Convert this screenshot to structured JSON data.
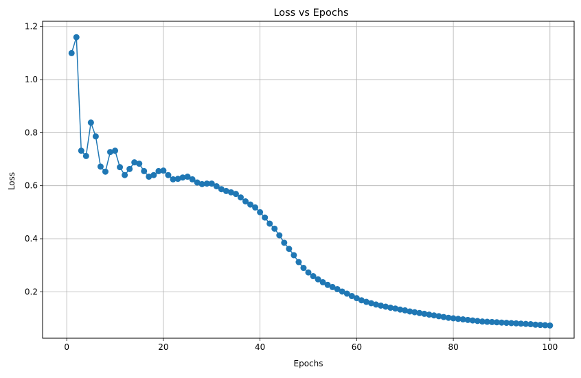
{
  "chart_data": {
    "type": "line",
    "title": "Loss vs Epochs",
    "xlabel": "Epochs",
    "ylabel": "Loss",
    "xlim": [
      -5,
      105
    ],
    "ylim": [
      0.025,
      1.22
    ],
    "grid": true,
    "x_ticks": [
      0,
      20,
      40,
      60,
      80,
      100
    ],
    "x_tick_labels": [
      "0",
      "20",
      "40",
      "60",
      "80",
      "100"
    ],
    "y_ticks": [
      0.2,
      0.4,
      0.6,
      0.8,
      1.0,
      1.2
    ],
    "y_tick_labels": [
      "0.2",
      "0.4",
      "0.6",
      "0.8",
      "1.0",
      "1.2"
    ],
    "line_color": "#1f77b4",
    "grid_color": "#b0b0b0",
    "marker": "circle",
    "series": [
      {
        "x": [
          1,
          2,
          3,
          4,
          5,
          6,
          7,
          8,
          9,
          10,
          11,
          12,
          13,
          14,
          15,
          16,
          17,
          18,
          19,
          20,
          21,
          22,
          23,
          24,
          25,
          26,
          27,
          28,
          29,
          30,
          31,
          32,
          33,
          34,
          35,
          36,
          37,
          38,
          39,
          40,
          41,
          42,
          43,
          44,
          45,
          46,
          47,
          48,
          49,
          50,
          51,
          52,
          53,
          54,
          55,
          56,
          57,
          58,
          59,
          60,
          61,
          62,
          63,
          64,
          65,
          66,
          67,
          68,
          69,
          70,
          71,
          72,
          73,
          74,
          75,
          76,
          77,
          78,
          79,
          80,
          81,
          82,
          83,
          84,
          85,
          86,
          87,
          88,
          89,
          90,
          91,
          92,
          93,
          94,
          95,
          96,
          97,
          98,
          99,
          100
        ],
        "values": [
          1.1,
          1.16,
          0.732,
          0.712,
          0.838,
          0.786,
          0.672,
          0.653,
          0.727,
          0.732,
          0.67,
          0.64,
          0.663,
          0.688,
          0.683,
          0.655,
          0.634,
          0.64,
          0.655,
          0.657,
          0.64,
          0.624,
          0.626,
          0.631,
          0.634,
          0.624,
          0.612,
          0.606,
          0.608,
          0.608,
          0.598,
          0.587,
          0.58,
          0.575,
          0.569,
          0.556,
          0.541,
          0.529,
          0.518,
          0.5,
          0.48,
          0.457,
          0.438,
          0.413,
          0.385,
          0.362,
          0.338,
          0.312,
          0.29,
          0.273,
          0.259,
          0.247,
          0.236,
          0.226,
          0.218,
          0.21,
          0.201,
          0.193,
          0.184,
          0.176,
          0.168,
          0.162,
          0.157,
          0.152,
          0.148,
          0.144,
          0.14,
          0.137,
          0.133,
          0.13,
          0.126,
          0.123,
          0.12,
          0.117,
          0.114,
          0.111,
          0.108,
          0.105,
          0.102,
          0.1,
          0.098,
          0.096,
          0.094,
          0.092,
          0.09,
          0.088,
          0.087,
          0.086,
          0.085,
          0.084,
          0.083,
          0.082,
          0.081,
          0.08,
          0.079,
          0.078,
          0.076,
          0.075,
          0.074,
          0.073
        ]
      }
    ]
  }
}
